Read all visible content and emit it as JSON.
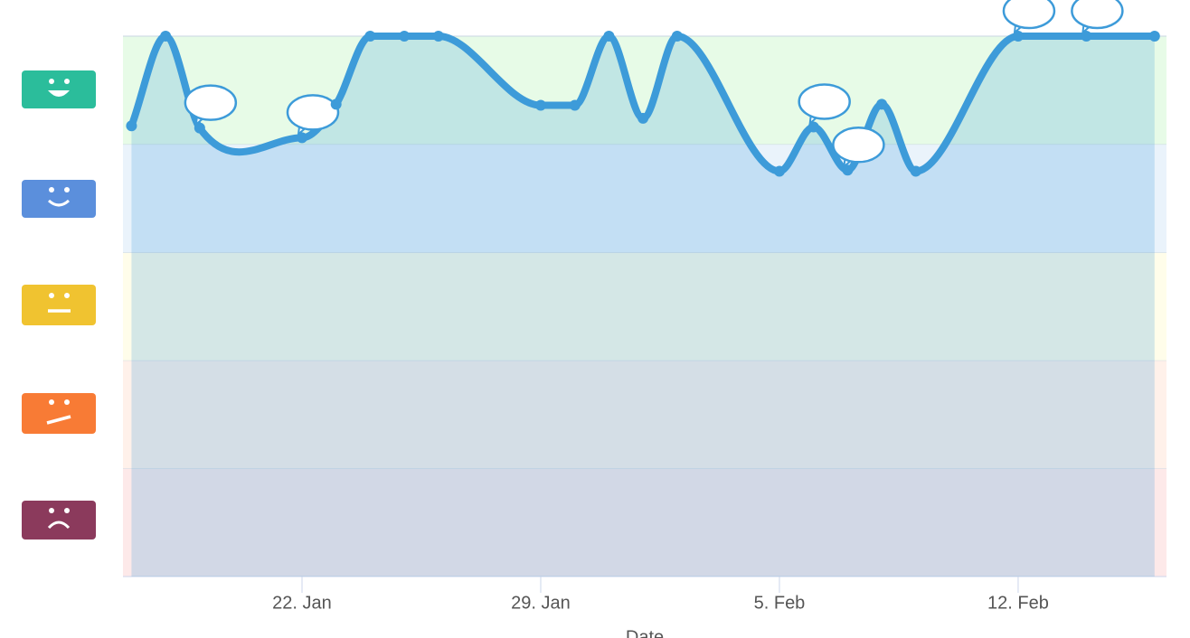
{
  "chart_data": {
    "type": "line",
    "x_label": "Date",
    "x": [
      17,
      18,
      19,
      22,
      23,
      24,
      25,
      26,
      29,
      30,
      31,
      32,
      33,
      36,
      37,
      38,
      39,
      40,
      43,
      45,
      47
    ],
    "values": [
      4.17,
      5,
      4.15,
      4.06,
      4.37,
      5,
      5,
      5,
      4.36,
      4.36,
      5,
      4.24,
      5,
      3.75,
      4.16,
      3.76,
      4.37,
      3.75,
      5,
      5,
      5
    ],
    "comments": [
      false,
      false,
      true,
      true,
      false,
      false,
      false,
      false,
      false,
      false,
      false,
      false,
      false,
      false,
      true,
      true,
      false,
      false,
      true,
      true,
      false
    ],
    "color": "#3d9bd9",
    "area_color": "rgba(61,155,217,0.22)",
    "xlim": [
      16.75,
      47.35
    ],
    "xticks": [
      {
        "value": 22,
        "label": "22. Jan"
      },
      {
        "value": 29,
        "label": "29. Jan"
      },
      {
        "value": 36,
        "label": "5. Feb"
      },
      {
        "value": 43,
        "label": "12. Feb"
      }
    ],
    "ylim": [
      0,
      5
    ],
    "band_colors": [
      "#fde9e9",
      "#fff1ea",
      "#fffdea",
      "#eaf3fb",
      "#e7fbe7"
    ]
  }
}
